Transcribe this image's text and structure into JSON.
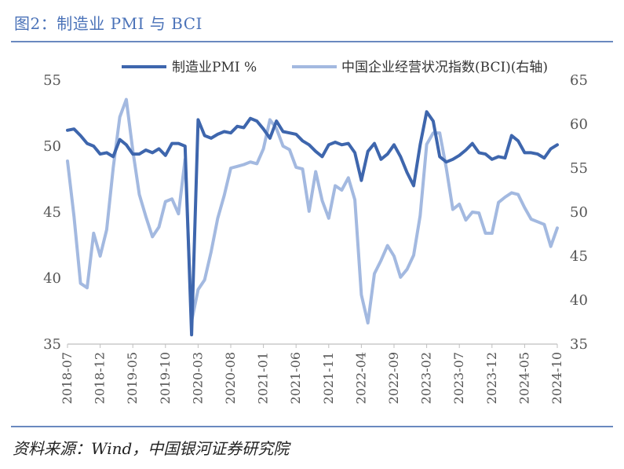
{
  "header": {
    "title": "图2：制造业 PMI 与 BCI"
  },
  "footer": {
    "source": "资料来源：Wind，中国银河证券研究院"
  },
  "colors": {
    "pmi": "#3E66AD",
    "bci": "#A3B9E0",
    "accent": "#4A72B8",
    "rule": "#6A89BF"
  },
  "chart_data": {
    "type": "line",
    "legend_position": "top",
    "grid": false,
    "x": [
      "2018-07",
      "2018-08",
      "2018-09",
      "2018-10",
      "2018-11",
      "2018-12",
      "2019-01",
      "2019-02",
      "2019-03",
      "2019-04",
      "2019-05",
      "2019-06",
      "2019-07",
      "2019-08",
      "2019-09",
      "2019-10",
      "2019-11",
      "2019-12",
      "2020-01",
      "2020-02",
      "2020-03",
      "2020-04",
      "2020-05",
      "2020-06",
      "2020-07",
      "2020-08",
      "2020-09",
      "2020-10",
      "2020-11",
      "2020-12",
      "2021-01",
      "2021-02",
      "2021-03",
      "2021-04",
      "2021-05",
      "2021-06",
      "2021-07",
      "2021-08",
      "2021-09",
      "2021-10",
      "2021-11",
      "2021-12",
      "2022-01",
      "2022-02",
      "2022-03",
      "2022-04",
      "2022-05",
      "2022-06",
      "2022-07",
      "2022-08",
      "2022-09",
      "2022-10",
      "2022-11",
      "2022-12",
      "2023-01",
      "2023-02",
      "2023-03",
      "2023-04",
      "2023-05",
      "2023-06",
      "2023-07",
      "2023-08",
      "2023-09",
      "2023-10",
      "2023-11",
      "2023-12",
      "2024-01",
      "2024-02",
      "2024-03",
      "2024-04",
      "2024-05",
      "2024-06",
      "2024-07",
      "2024-08",
      "2024-09",
      "2024-10"
    ],
    "xticks": [
      "2018-07",
      "2018-12",
      "2019-05",
      "2019-10",
      "2020-03",
      "2020-08",
      "2021-01",
      "2021-06",
      "2021-11",
      "2022-04",
      "2022-09",
      "2023-02",
      "2023-07",
      "2023-12",
      "2024-05",
      "2024-10"
    ],
    "y_left": {
      "ylim": [
        35,
        55
      ],
      "ticks": [
        35,
        40,
        45,
        50,
        55
      ]
    },
    "y_right": {
      "ylim": [
        35,
        65
      ],
      "ticks": [
        35,
        40,
        45,
        50,
        55,
        60,
        65
      ]
    },
    "series": [
      {
        "name": "制造业PMI %",
        "axis": "left",
        "color": "#3E66AD",
        "width": 4,
        "values": [
          51.2,
          51.3,
          50.8,
          50.2,
          50.0,
          49.4,
          49.5,
          49.2,
          50.5,
          50.1,
          49.4,
          49.4,
          49.7,
          49.5,
          49.8,
          49.3,
          50.2,
          50.2,
          50.0,
          35.7,
          52.0,
          50.8,
          50.6,
          50.9,
          51.1,
          51.0,
          51.5,
          51.4,
          52.1,
          51.9,
          51.3,
          50.6,
          51.9,
          51.1,
          51.0,
          50.9,
          50.4,
          50.1,
          49.6,
          49.2,
          50.1,
          50.3,
          50.1,
          50.2,
          49.5,
          47.4,
          49.6,
          50.2,
          49.0,
          49.4,
          50.1,
          49.2,
          48.0,
          47.0,
          50.1,
          52.6,
          51.9,
          49.2,
          48.8,
          49.0,
          49.3,
          49.7,
          50.2,
          49.5,
          49.4,
          49.0,
          49.2,
          49.1,
          50.8,
          50.4,
          49.5,
          49.5,
          49.4,
          49.1,
          49.8,
          50.1
        ]
      },
      {
        "name": "中国企业经营状况指数(BCI)(右轴)",
        "axis": "right",
        "color": "#A3B9E0",
        "width": 4,
        "values": [
          55.8,
          49.5,
          41.9,
          41.4,
          47.6,
          45.0,
          48.0,
          55.0,
          60.8,
          62.8,
          57.0,
          52.0,
          49.5,
          47.2,
          48.3,
          51.2,
          51.5,
          49.8,
          56.0,
          37.6,
          41.2,
          42.3,
          45.5,
          49.3,
          51.9,
          55.0,
          55.2,
          55.4,
          55.7,
          55.5,
          57.2,
          60.5,
          59.5,
          57.5,
          57.1,
          55.1,
          54.9,
          50.1,
          54.6,
          51.3,
          49.3,
          53.0,
          52.5,
          53.9,
          51.4,
          40.6,
          37.4,
          43.0,
          44.5,
          46.2,
          45.0,
          42.6,
          43.5,
          45.1,
          49.6,
          57.7,
          59.0,
          59.0,
          55.0,
          50.3,
          50.9,
          49.1,
          50.0,
          49.9,
          47.6,
          47.6,
          51.1,
          51.7,
          52.2,
          52.0,
          50.5,
          49.2,
          48.9,
          48.6,
          46.1,
          48.2
        ]
      }
    ]
  }
}
